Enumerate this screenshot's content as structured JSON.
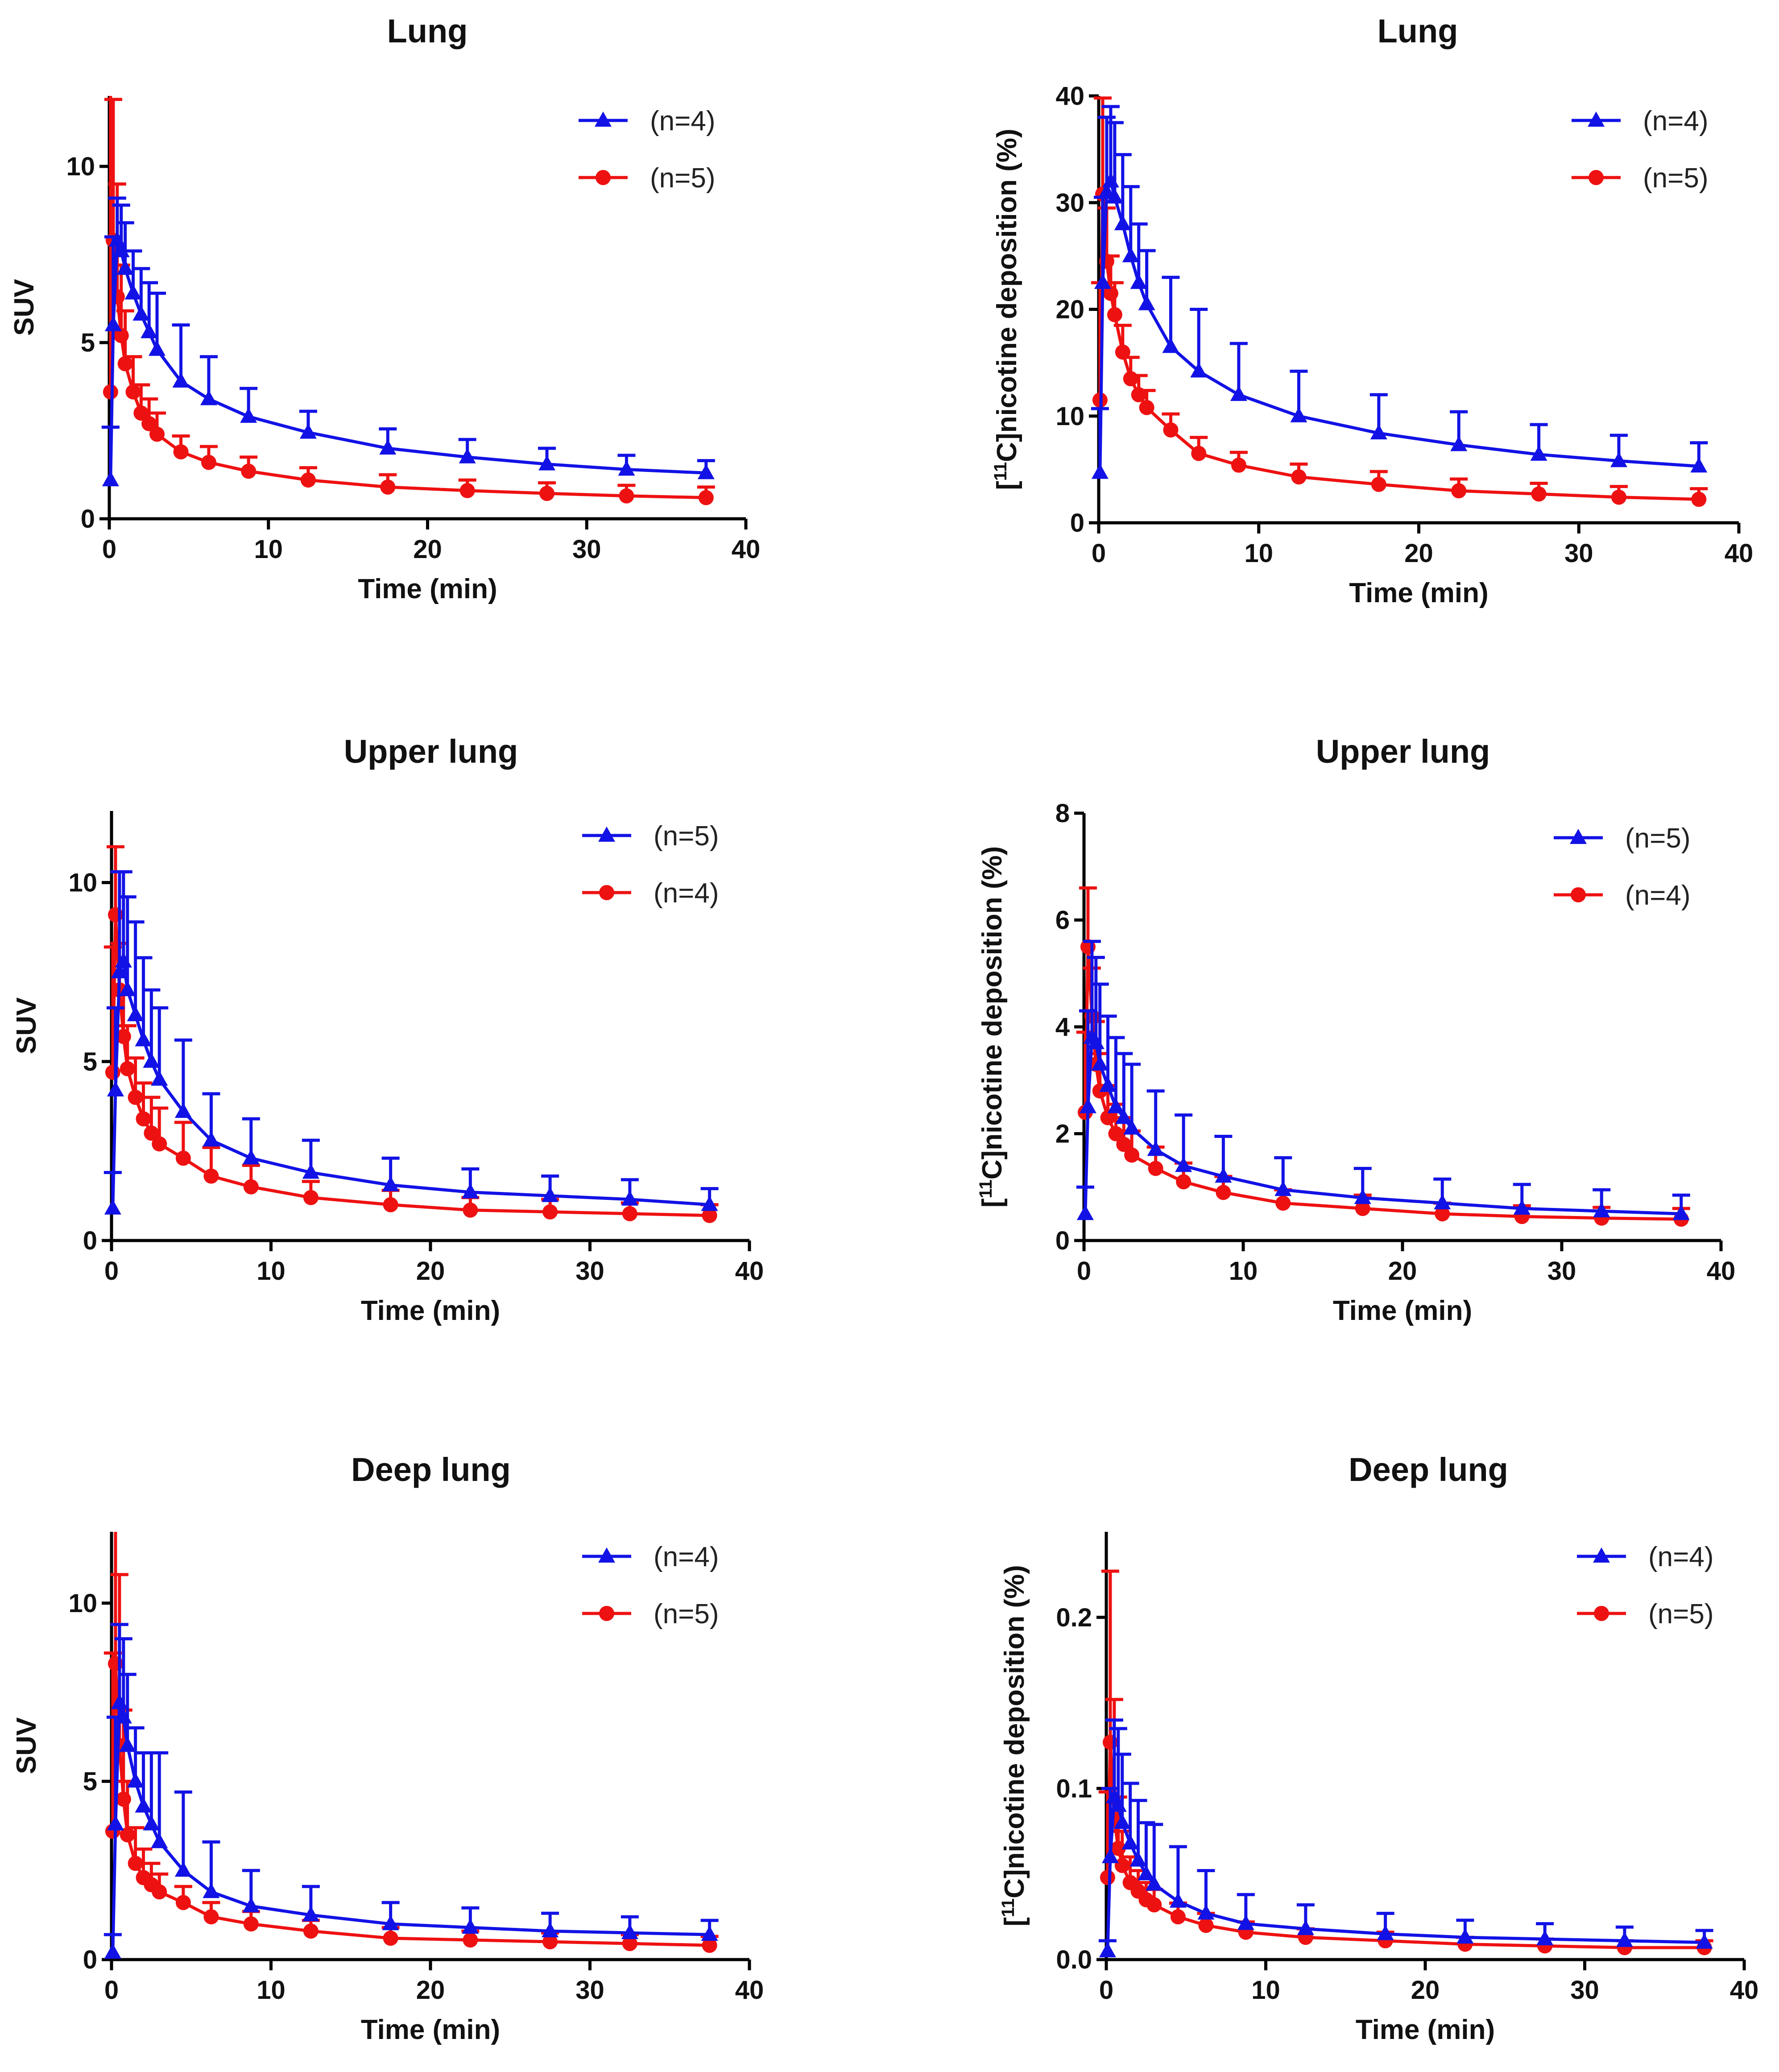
{
  "colors": {
    "blue": "#1212e6",
    "red": "#ee1111"
  },
  "xlabel": "Time (min)",
  "chart_data": [
    {
      "type": "line",
      "title": "Lung",
      "ylabel": "SUV",
      "ylabel_sup": "",
      "ylabel_rest": "",
      "xlim": [
        0,
        40
      ],
      "ylim": [
        0,
        12
      ],
      "yticks": [
        0,
        5,
        10
      ],
      "yticklabels": [
        "0",
        "5",
        "10"
      ],
      "xticks": [
        0,
        10,
        20,
        30,
        40
      ],
      "xticklabels": [
        "0",
        "10",
        "20",
        "30",
        "40"
      ],
      "legend_position": "top-right",
      "series": [
        {
          "name": "(n=4)",
          "marker": "triangle",
          "color": "#1212e6",
          "x": [
            0.08,
            0.25,
            0.5,
            0.75,
            1.0,
            1.5,
            2.0,
            2.5,
            3.0,
            4.5,
            6.25,
            8.75,
            12.5,
            17.5,
            22.5,
            27.5,
            32.5,
            37.5
          ],
          "y": [
            1.1,
            5.5,
            7.9,
            7.6,
            7.1,
            6.4,
            5.8,
            5.3,
            4.8,
            3.9,
            3.4,
            2.9,
            2.45,
            2.0,
            1.75,
            1.55,
            1.4,
            1.3
          ],
          "err": [
            1.5,
            2.5,
            1.2,
            1.3,
            1.3,
            1.2,
            1.3,
            1.4,
            1.6,
            1.6,
            1.2,
            0.8,
            0.6,
            0.55,
            0.5,
            0.45,
            0.4,
            0.35
          ]
        },
        {
          "name": "(n=5)",
          "marker": "circle",
          "color": "#ee1111",
          "x": [
            0.08,
            0.25,
            0.5,
            0.75,
            1.0,
            1.5,
            2.0,
            2.5,
            3.0,
            4.5,
            6.25,
            8.75,
            12.5,
            17.5,
            22.5,
            27.5,
            32.5,
            37.5
          ],
          "y": [
            3.6,
            7.9,
            6.3,
            5.2,
            4.4,
            3.6,
            3.0,
            2.7,
            2.4,
            1.9,
            1.6,
            1.35,
            1.1,
            0.9,
            0.8,
            0.72,
            0.65,
            0.6
          ],
          "err": [
            8.5,
            4.0,
            3.2,
            2.0,
            1.5,
            1.0,
            0.8,
            0.7,
            0.6,
            0.45,
            0.45,
            0.4,
            0.35,
            0.35,
            0.3,
            0.3,
            0.3,
            0.3
          ]
        }
      ]
    },
    {
      "type": "line",
      "title": "Lung",
      "ylabel": "",
      "ylabel_sup": "11",
      "ylabel_rest": "C]nicotine deposition (%)",
      "xlim": [
        0,
        40
      ],
      "ylim": [
        0,
        40
      ],
      "yticks": [
        0,
        10,
        20,
        30,
        40
      ],
      "yticklabels": [
        "0",
        "10",
        "20",
        "30",
        "40"
      ],
      "xticks": [
        0,
        10,
        20,
        30,
        40
      ],
      "xticklabels": [
        "0",
        "10",
        "20",
        "30",
        "40"
      ],
      "legend_position": "top-right",
      "series": [
        {
          "name": "(n=4)",
          "marker": "triangle",
          "color": "#1212e6",
          "x": [
            0.08,
            0.25,
            0.5,
            0.75,
            1.0,
            1.5,
            2.0,
            2.5,
            3.0,
            4.5,
            6.25,
            8.75,
            12.5,
            17.5,
            22.5,
            27.5,
            32.5,
            37.5
          ],
          "y": [
            4.7,
            22.5,
            31.0,
            32.0,
            30.5,
            28.0,
            25.0,
            22.5,
            20.5,
            16.5,
            14.2,
            12.0,
            10.0,
            8.4,
            7.3,
            6.4,
            5.8,
            5.3
          ],
          "err": [
            6.0,
            8.0,
            7.0,
            7.0,
            7.0,
            6.5,
            6.5,
            5.5,
            5.0,
            6.5,
            5.8,
            4.8,
            4.2,
            3.6,
            3.1,
            2.8,
            2.4,
            2.2
          ]
        },
        {
          "name": "(n=5)",
          "marker": "circle",
          "color": "#ee1111",
          "x": [
            0.08,
            0.25,
            0.5,
            0.75,
            1.0,
            1.5,
            2.0,
            2.5,
            3.0,
            4.5,
            6.25,
            8.75,
            12.5,
            17.5,
            22.5,
            27.5,
            32.5,
            37.5
          ],
          "y": [
            11.5,
            30.8,
            24.5,
            21.5,
            19.5,
            16.0,
            13.5,
            12.0,
            10.8,
            8.7,
            6.5,
            5.4,
            4.3,
            3.6,
            3.0,
            2.7,
            2.4,
            2.2
          ],
          "err": [
            11.0,
            9.0,
            5.0,
            3.5,
            3.0,
            2.5,
            2.0,
            1.8,
            1.6,
            1.5,
            1.5,
            1.2,
            1.2,
            1.2,
            1.1,
            1.0,
            1.0,
            1.0
          ]
        }
      ]
    },
    {
      "type": "line",
      "title": "Upper lung",
      "ylabel": "SUV",
      "ylabel_sup": "",
      "ylabel_rest": "",
      "xlim": [
        0,
        40
      ],
      "ylim": [
        0,
        12
      ],
      "yticks": [
        0,
        5,
        10
      ],
      "yticklabels": [
        "0",
        "5",
        "10"
      ],
      "xticks": [
        0,
        10,
        20,
        30,
        40
      ],
      "xticklabels": [
        "0",
        "10",
        "20",
        "30",
        "40"
      ],
      "legend_position": "top-right",
      "series": [
        {
          "name": "(n=5)",
          "marker": "triangle",
          "color": "#1212e6",
          "x": [
            0.08,
            0.25,
            0.5,
            0.75,
            1.0,
            1.5,
            2.0,
            2.5,
            3.0,
            4.5,
            6.25,
            8.75,
            12.5,
            17.5,
            22.5,
            27.5,
            32.5,
            37.5
          ],
          "y": [
            0.9,
            4.2,
            7.5,
            7.8,
            7.0,
            6.3,
            5.6,
            5.0,
            4.5,
            3.6,
            2.8,
            2.3,
            1.9,
            1.55,
            1.35,
            1.25,
            1.15,
            1.0
          ],
          "err": [
            1.0,
            2.3,
            2.8,
            2.5,
            2.6,
            2.6,
            2.3,
            2.0,
            2.0,
            2.0,
            1.3,
            1.1,
            0.9,
            0.75,
            0.65,
            0.55,
            0.55,
            0.45
          ]
        },
        {
          "name": "(n=4)",
          "marker": "circle",
          "color": "#ee1111",
          "x": [
            0.08,
            0.25,
            0.5,
            0.75,
            1.0,
            1.5,
            2.0,
            2.5,
            3.0,
            4.5,
            6.25,
            8.75,
            12.5,
            17.5,
            22.5,
            27.5,
            32.5,
            37.5
          ],
          "y": [
            4.7,
            9.1,
            7.0,
            5.7,
            4.8,
            4.0,
            3.4,
            3.0,
            2.7,
            2.3,
            1.8,
            1.5,
            1.2,
            1.0,
            0.85,
            0.8,
            0.75,
            0.7
          ],
          "err": [
            3.5,
            1.9,
            1.3,
            1.2,
            1.2,
            1.1,
            1.0,
            1.0,
            1.0,
            1.0,
            0.8,
            0.6,
            0.45,
            0.4,
            0.35,
            0.35,
            0.3,
            0.3
          ]
        }
      ]
    },
    {
      "type": "line",
      "title": "Upper lung",
      "ylabel": "",
      "ylabel_sup": "11",
      "ylabel_rest": "C]nicotine deposition (%)",
      "xlim": [
        0,
        40
      ],
      "ylim": [
        0,
        8
      ],
      "yticks": [
        0,
        2,
        4,
        6,
        8
      ],
      "yticklabels": [
        "0",
        "2",
        "4",
        "6",
        "8"
      ],
      "xticks": [
        0,
        10,
        20,
        30,
        40
      ],
      "xticklabels": [
        "0",
        "10",
        "20",
        "30",
        "40"
      ],
      "legend_position": "top-right",
      "series": [
        {
          "name": "(n=5)",
          "marker": "triangle",
          "color": "#1212e6",
          "x": [
            0.08,
            0.25,
            0.5,
            0.75,
            1.0,
            1.5,
            2.0,
            2.5,
            3.0,
            4.5,
            6.25,
            8.75,
            12.5,
            17.5,
            22.5,
            27.5,
            32.5,
            37.5
          ],
          "y": [
            0.5,
            2.5,
            3.8,
            3.7,
            3.3,
            2.9,
            2.5,
            2.3,
            2.1,
            1.7,
            1.4,
            1.2,
            0.95,
            0.8,
            0.7,
            0.6,
            0.55,
            0.5
          ],
          "err": [
            0.5,
            1.8,
            1.8,
            1.6,
            1.5,
            1.3,
            1.3,
            1.2,
            1.2,
            1.1,
            0.95,
            0.75,
            0.6,
            0.55,
            0.45,
            0.45,
            0.4,
            0.35
          ]
        },
        {
          "name": "(n=4)",
          "marker": "circle",
          "color": "#ee1111",
          "x": [
            0.08,
            0.25,
            0.5,
            0.75,
            1.0,
            1.5,
            2.0,
            2.5,
            3.0,
            4.5,
            6.25,
            8.75,
            12.5,
            17.5,
            22.5,
            27.5,
            32.5,
            37.5
          ],
          "y": [
            2.4,
            5.5,
            4.2,
            3.3,
            2.8,
            2.3,
            2.0,
            1.8,
            1.6,
            1.35,
            1.1,
            0.9,
            0.7,
            0.6,
            0.5,
            0.45,
            0.42,
            0.4
          ],
          "err": [
            1.5,
            1.1,
            0.9,
            0.8,
            0.7,
            0.6,
            0.55,
            0.5,
            0.45,
            0.4,
            0.35,
            0.3,
            0.25,
            0.25,
            0.2,
            0.2,
            0.2,
            0.2
          ]
        }
      ]
    },
    {
      "type": "line",
      "title": "Deep lung",
      "ylabel": "SUV",
      "ylabel_sup": "",
      "ylabel_rest": "",
      "xlim": [
        0,
        40
      ],
      "ylim": [
        0,
        12
      ],
      "yticks": [
        0,
        5,
        10
      ],
      "yticklabels": [
        "0",
        "5",
        "10"
      ],
      "xticks": [
        0,
        10,
        20,
        30,
        40
      ],
      "xticklabels": [
        "0",
        "10",
        "20",
        "30",
        "40"
      ],
      "legend_position": "top-right",
      "series": [
        {
          "name": "(n=4)",
          "marker": "triangle",
          "color": "#1212e6",
          "x": [
            0.08,
            0.25,
            0.5,
            0.75,
            1.0,
            1.5,
            2.0,
            2.5,
            3.0,
            4.5,
            6.25,
            8.75,
            12.5,
            17.5,
            22.5,
            27.5,
            32.5,
            37.5
          ],
          "y": [
            0.2,
            3.8,
            7.2,
            6.8,
            6.0,
            5.0,
            4.3,
            3.8,
            3.3,
            2.5,
            1.9,
            1.5,
            1.25,
            1.0,
            0.9,
            0.8,
            0.75,
            0.7
          ],
          "err": [
            0.5,
            3.0,
            2.2,
            2.2,
            2.0,
            1.5,
            1.5,
            2.0,
            2.5,
            2.2,
            1.4,
            1.0,
            0.8,
            0.6,
            0.55,
            0.5,
            0.45,
            0.4
          ]
        },
        {
          "name": "(n=5)",
          "marker": "circle",
          "color": "#ee1111",
          "x": [
            0.08,
            0.25,
            0.5,
            0.75,
            1.0,
            1.5,
            2.0,
            2.5,
            3.0,
            4.5,
            6.25,
            8.75,
            12.5,
            17.5,
            22.5,
            27.5,
            32.5,
            37.5
          ],
          "y": [
            3.6,
            8.3,
            6.0,
            4.5,
            3.5,
            2.7,
            2.3,
            2.1,
            1.9,
            1.6,
            1.2,
            1.0,
            0.8,
            0.6,
            0.55,
            0.5,
            0.45,
            0.4
          ],
          "err": [
            5.0,
            4.5,
            4.8,
            2.5,
            1.5,
            1.0,
            0.8,
            0.6,
            0.5,
            0.45,
            0.4,
            0.35,
            0.3,
            0.3,
            0.25,
            0.25,
            0.25,
            0.25
          ]
        }
      ]
    },
    {
      "type": "line",
      "title": "Deep lung",
      "ylabel": "",
      "ylabel_sup": "11",
      "ylabel_rest": "C]nicotine deposition (%)",
      "xlim": [
        0,
        40
      ],
      "ylim": [
        0,
        0.25
      ],
      "yticks": [
        0,
        0.1,
        0.2
      ],
      "yticklabels": [
        "0.0",
        "0.1",
        "0.2"
      ],
      "xticks": [
        0,
        10,
        20,
        30,
        40
      ],
      "xticklabels": [
        "0",
        "10",
        "20",
        "30",
        "40"
      ],
      "legend_position": "top-right",
      "series": [
        {
          "name": "(n=4)",
          "marker": "triangle",
          "color": "#1212e6",
          "x": [
            0.08,
            0.25,
            0.5,
            0.75,
            1.0,
            1.5,
            2.0,
            2.5,
            3.0,
            4.5,
            6.25,
            8.75,
            12.5,
            17.5,
            22.5,
            27.5,
            32.5,
            37.5
          ],
          "y": [
            0.005,
            0.06,
            0.095,
            0.09,
            0.08,
            0.068,
            0.058,
            0.05,
            0.044,
            0.034,
            0.027,
            0.021,
            0.018,
            0.015,
            0.013,
            0.012,
            0.011,
            0.01
          ],
          "err": [
            0.006,
            0.04,
            0.045,
            0.045,
            0.04,
            0.035,
            0.035,
            0.03,
            0.035,
            0.032,
            0.025,
            0.017,
            0.014,
            0.012,
            0.01,
            0.009,
            0.008,
            0.007
          ]
        },
        {
          "name": "(n=5)",
          "marker": "circle",
          "color": "#ee1111",
          "x": [
            0.08,
            0.25,
            0.5,
            0.75,
            1.0,
            1.5,
            2.0,
            2.5,
            3.0,
            4.5,
            6.25,
            8.75,
            12.5,
            17.5,
            22.5,
            27.5,
            32.5,
            37.5
          ],
          "y": [
            0.048,
            0.127,
            0.082,
            0.065,
            0.055,
            0.045,
            0.04,
            0.035,
            0.032,
            0.025,
            0.02,
            0.016,
            0.013,
            0.011,
            0.009,
            0.008,
            0.007,
            0.007
          ],
          "err": [
            0.05,
            0.1,
            0.07,
            0.03,
            0.02,
            0.015,
            0.012,
            0.01,
            0.009,
            0.008,
            0.007,
            0.006,
            0.005,
            0.005,
            0.004,
            0.004,
            0.004,
            0.004
          ]
        }
      ]
    }
  ]
}
